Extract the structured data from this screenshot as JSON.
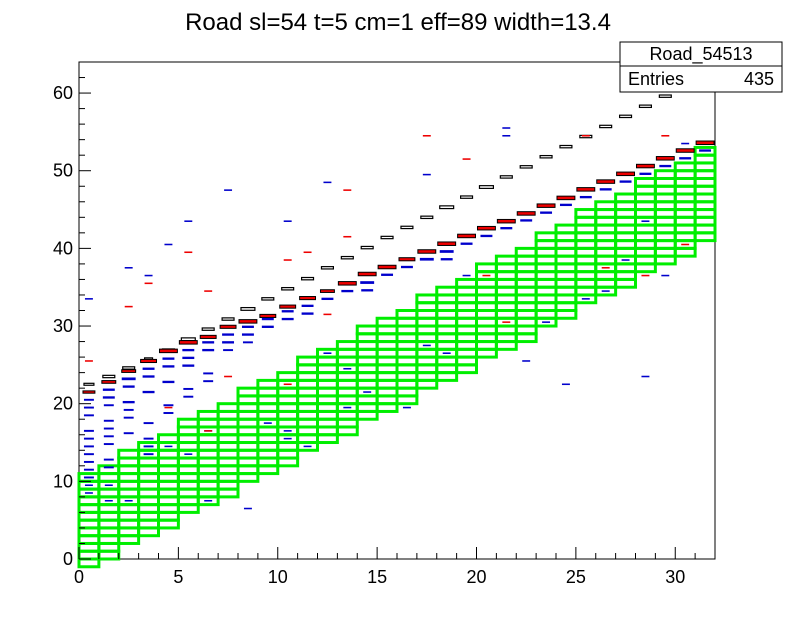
{
  "chart_data": {
    "type": "heatmap",
    "title": "Road sl=54 t=5 cm=1 eff=89 width=13.4",
    "xlabel": "",
    "ylabel": "",
    "xlim": [
      0,
      32
    ],
    "ylim": [
      0,
      64
    ],
    "x_ticks": [
      "0",
      "5",
      "10",
      "15",
      "20",
      "25",
      "30"
    ],
    "y_ticks": [
      "0",
      "10",
      "20",
      "30",
      "40",
      "50",
      "60"
    ],
    "stats_box": {
      "name": "Road_54513",
      "entries_label": "Entries",
      "entries_value": "435"
    },
    "road": {
      "color": "#00ee00",
      "line_start": 10,
      "line_slope": 1.34,
      "rows_below": 12,
      "upper_offset": 1
    },
    "series": [
      {
        "style": "black-outline",
        "points": [
          [
            0.5,
            22.5,
            0.5
          ],
          [
            1.5,
            23.5,
            0.6
          ],
          [
            2.5,
            24.6,
            0.6
          ],
          [
            3.5,
            25.8,
            0.4
          ],
          [
            4.5,
            26.9,
            0.6
          ],
          [
            5.5,
            28.3,
            0.7
          ],
          [
            6.5,
            29.6,
            0.6
          ],
          [
            7.5,
            30.9,
            0.6
          ],
          [
            8.5,
            32.2,
            0.7
          ],
          [
            9.5,
            33.5,
            0.6
          ],
          [
            10.5,
            34.8,
            0.6
          ],
          [
            11.5,
            36.1,
            0.6
          ],
          [
            12.5,
            37.5,
            0.6
          ],
          [
            13.5,
            38.8,
            0.6
          ],
          [
            14.5,
            40.1,
            0.6
          ],
          [
            15.5,
            41.4,
            0.6
          ],
          [
            16.5,
            42.7,
            0.6
          ],
          [
            17.5,
            44.0,
            0.6
          ],
          [
            18.5,
            45.3,
            0.7
          ],
          [
            19.5,
            46.6,
            0.6
          ],
          [
            20.5,
            47.9,
            0.7
          ],
          [
            21.5,
            49.2,
            0.6
          ],
          [
            22.5,
            50.5,
            0.6
          ],
          [
            23.5,
            51.8,
            0.6
          ],
          [
            24.5,
            53.1,
            0.6
          ],
          [
            25.5,
            54.4,
            0.6
          ],
          [
            26.5,
            55.7,
            0.6
          ],
          [
            27.5,
            57.0,
            0.6
          ],
          [
            28.5,
            58.3,
            0.6
          ],
          [
            29.5,
            59.6,
            0.6
          ],
          [
            30.5,
            60.9,
            0.6
          ],
          [
            31.5,
            62.2,
            0.6
          ]
        ]
      },
      {
        "style": "red",
        "points": [
          [
            0.5,
            21.5,
            0.6
          ],
          [
            1.5,
            22.8,
            0.7
          ],
          [
            2.5,
            24.2,
            0.7
          ],
          [
            3.5,
            25.5,
            0.8
          ],
          [
            4.5,
            26.8,
            0.9
          ],
          [
            5.5,
            27.9,
            0.9
          ],
          [
            6.5,
            28.6,
            0.8
          ],
          [
            7.5,
            29.9,
            0.8
          ],
          [
            8.5,
            30.6,
            0.9
          ],
          [
            9.5,
            31.3,
            0.8
          ],
          [
            10.5,
            32.5,
            0.8
          ],
          [
            11.5,
            33.6,
            0.8
          ],
          [
            12.5,
            34.5,
            0.7
          ],
          [
            13.5,
            35.5,
            0.9
          ],
          [
            14.5,
            36.7,
            0.9
          ],
          [
            15.5,
            37.6,
            0.9
          ],
          [
            16.5,
            38.6,
            0.8
          ],
          [
            17.5,
            39.6,
            0.9
          ],
          [
            18.5,
            40.6,
            0.9
          ],
          [
            19.5,
            41.6,
            0.9
          ],
          [
            20.5,
            42.6,
            0.9
          ],
          [
            21.5,
            43.5,
            0.9
          ],
          [
            22.5,
            44.5,
            0.9
          ],
          [
            23.5,
            45.5,
            0.9
          ],
          [
            24.5,
            46.5,
            0.9
          ],
          [
            25.5,
            47.6,
            0.9
          ],
          [
            26.5,
            48.6,
            0.9
          ],
          [
            27.5,
            49.6,
            0.9
          ],
          [
            28.5,
            50.6,
            0.9
          ],
          [
            29.5,
            51.6,
            0.9
          ],
          [
            30.5,
            52.6,
            0.9
          ],
          [
            31.5,
            53.6,
            0.9
          ]
        ]
      },
      {
        "style": "blue",
        "points": [
          [
            0.5,
            20.5,
            0.5
          ],
          [
            0.5,
            19.5,
            0.5
          ],
          [
            0.5,
            18.5,
            0.5
          ],
          [
            0.5,
            16.5,
            0.5
          ],
          [
            0.5,
            15.5,
            0.5
          ],
          [
            0.5,
            14.5,
            0.5
          ],
          [
            0.5,
            13.5,
            0.5
          ],
          [
            0.5,
            12.5,
            0.5
          ],
          [
            0.5,
            11.5,
            0.5
          ],
          [
            0.5,
            10.5,
            0.5
          ],
          [
            1.5,
            21.8,
            0.6
          ],
          [
            1.5,
            20.8,
            0.6
          ],
          [
            1.5,
            19.8,
            0.5
          ],
          [
            1.5,
            17.8,
            0.5
          ],
          [
            1.5,
            16.8,
            0.5
          ],
          [
            1.5,
            15.8,
            0.5
          ],
          [
            1.5,
            14.8,
            0.5
          ],
          [
            1.5,
            12.8,
            0.5
          ],
          [
            1.5,
            11.8,
            0.5
          ],
          [
            2.5,
            23.2,
            0.7
          ],
          [
            2.5,
            22.2,
            0.6
          ],
          [
            2.5,
            20.2,
            0.6
          ],
          [
            2.5,
            19.2,
            0.5
          ],
          [
            2.5,
            18.2,
            0.5
          ],
          [
            2.5,
            16.2,
            0.5
          ],
          [
            3.5,
            24.5,
            0.6
          ],
          [
            3.5,
            23.5,
            0.6
          ],
          [
            3.5,
            21.5,
            0.6
          ],
          [
            3.5,
            17.5,
            0.5
          ],
          [
            3.5,
            15.5,
            0.5
          ],
          [
            3.5,
            14.5,
            0.5
          ],
          [
            3.5,
            13.5,
            0.5
          ],
          [
            4.5,
            25.8,
            0.6
          ],
          [
            4.5,
            24.8,
            0.6
          ],
          [
            4.5,
            22.8,
            0.6
          ],
          [
            4.5,
            19.8,
            0.5
          ],
          [
            4.5,
            18.8,
            0.5
          ],
          [
            5.5,
            26.9,
            0.6
          ],
          [
            5.5,
            25.9,
            0.6
          ],
          [
            5.5,
            24.9,
            0.6
          ],
          [
            5.5,
            21.9,
            0.5
          ],
          [
            5.5,
            20.9,
            0.5
          ],
          [
            6.5,
            27.9,
            0.6
          ],
          [
            6.5,
            26.9,
            0.6
          ],
          [
            6.5,
            23.9,
            0.5
          ],
          [
            6.5,
            22.9,
            0.5
          ],
          [
            7.5,
            28.9,
            0.6
          ],
          [
            7.5,
            27.9,
            0.6
          ],
          [
            7.5,
            26.9,
            0.5
          ],
          [
            8.5,
            29.9,
            0.6
          ],
          [
            8.5,
            28.9,
            0.6
          ],
          [
            8.5,
            27.9,
            0.5
          ],
          [
            9.5,
            30.9,
            0.6
          ],
          [
            9.5,
            29.9,
            0.6
          ],
          [
            10.5,
            31.9,
            0.6
          ],
          [
            10.5,
            30.9,
            0.6
          ],
          [
            11.5,
            32.6,
            0.6
          ],
          [
            11.5,
            31.6,
            0.6
          ],
          [
            12.5,
            33.5,
            0.6
          ],
          [
            13.5,
            34.5,
            0.6
          ],
          [
            14.5,
            35.6,
            0.7
          ],
          [
            14.5,
            34.6,
            0.6
          ],
          [
            15.5,
            36.6,
            0.6
          ],
          [
            16.5,
            37.6,
            0.6
          ],
          [
            17.5,
            38.6,
            0.7
          ],
          [
            18.5,
            39.6,
            0.7
          ],
          [
            18.5,
            38.6,
            0.6
          ],
          [
            19.5,
            40.6,
            0.6
          ],
          [
            20.5,
            41.6,
            0.6
          ],
          [
            21.5,
            42.6,
            0.6
          ],
          [
            22.5,
            43.6,
            0.6
          ],
          [
            23.5,
            44.6,
            0.6
          ],
          [
            24.5,
            45.6,
            0.6
          ],
          [
            25.5,
            46.6,
            0.6
          ],
          [
            26.5,
            47.6,
            0.6
          ],
          [
            27.5,
            48.6,
            0.6
          ],
          [
            28.5,
            49.6,
            0.6
          ],
          [
            29.5,
            50.6,
            0.6
          ],
          [
            30.5,
            51.6,
            0.6
          ],
          [
            31.5,
            52.6,
            0.6
          ]
        ]
      },
      {
        "style": "scatter-blue",
        "points": [
          [
            0.5,
            33.5,
            0.4
          ],
          [
            0.5,
            9.5,
            0.4
          ],
          [
            0.5,
            8.5,
            0.4
          ],
          [
            1.5,
            9.5,
            0.4
          ],
          [
            2.5,
            7.5,
            0.4
          ],
          [
            1.5,
            7.5,
            0.4
          ],
          [
            3.5,
            36.5,
            0.4
          ],
          [
            2.5,
            37.5,
            0.4
          ],
          [
            4.5,
            40.5,
            0.4
          ],
          [
            5.5,
            43.5,
            0.4
          ],
          [
            4.5,
            14.5,
            0.4
          ],
          [
            5.5,
            13.5,
            0.4
          ],
          [
            6.5,
            16.5,
            0.4
          ],
          [
            7.5,
            47.5,
            0.4
          ],
          [
            6.5,
            7.5,
            0.4
          ],
          [
            8.5,
            6.5,
            0.4
          ],
          [
            9.5,
            17.5,
            0.4
          ],
          [
            10.5,
            16.5,
            0.4
          ],
          [
            10.5,
            15.5,
            0.4
          ],
          [
            10.5,
            43.5,
            0.4
          ],
          [
            11.5,
            14.5,
            0.4
          ],
          [
            12.5,
            48.5,
            0.4
          ],
          [
            12.5,
            26.5,
            0.4
          ],
          [
            13.5,
            24.5,
            0.4
          ],
          [
            13.5,
            19.5,
            0.4
          ],
          [
            14.5,
            21.5,
            0.4
          ],
          [
            16.5,
            19.5,
            0.4
          ],
          [
            17.5,
            27.5,
            0.4
          ],
          [
            17.5,
            49.5,
            0.4
          ],
          [
            18.5,
            26.5,
            0.4
          ],
          [
            19.5,
            36.5,
            0.4
          ],
          [
            21.5,
            55.5,
            0.4
          ],
          [
            21.5,
            54.5,
            0.4
          ],
          [
            22.5,
            25.5,
            0.4
          ],
          [
            23.5,
            30.5,
            0.4
          ],
          [
            24.5,
            22.5,
            0.4
          ],
          [
            25.5,
            33.5,
            0.4
          ],
          [
            26.5,
            34.5,
            0.4
          ],
          [
            27.5,
            38.5,
            0.4
          ],
          [
            28.5,
            23.5,
            0.4
          ],
          [
            28.5,
            43.5,
            0.4
          ],
          [
            29.5,
            36.5,
            0.4
          ],
          [
            30.5,
            53.5,
            0.4
          ]
        ]
      },
      {
        "style": "scatter-red",
        "points": [
          [
            0.5,
            25.5,
            0.4
          ],
          [
            2.5,
            32.5,
            0.4
          ],
          [
            3.5,
            35.5,
            0.4
          ],
          [
            4.5,
            19.5,
            0.4
          ],
          [
            5.5,
            39.5,
            0.4
          ],
          [
            6.5,
            34.5,
            0.4
          ],
          [
            6.5,
            16.5,
            0.4
          ],
          [
            7.5,
            23.5,
            0.4
          ],
          [
            10.5,
            38.5,
            0.4
          ],
          [
            10.5,
            22.5,
            0.4
          ],
          [
            11.5,
            39.5,
            0.4
          ],
          [
            12.5,
            31.5,
            0.4
          ],
          [
            13.5,
            47.5,
            0.4
          ],
          [
            13.5,
            41.5,
            0.4
          ],
          [
            17.5,
            54.5,
            0.4
          ],
          [
            19.5,
            51.5,
            0.4
          ],
          [
            20.5,
            36.5,
            0.4
          ],
          [
            21.5,
            30.5,
            0.4
          ],
          [
            25.5,
            54.5,
            0.4
          ],
          [
            26.5,
            37.5,
            0.4
          ],
          [
            28.5,
            36.5,
            0.4
          ],
          [
            29.5,
            54.5,
            0.4
          ],
          [
            30.5,
            40.5,
            0.4
          ]
        ]
      }
    ]
  }
}
